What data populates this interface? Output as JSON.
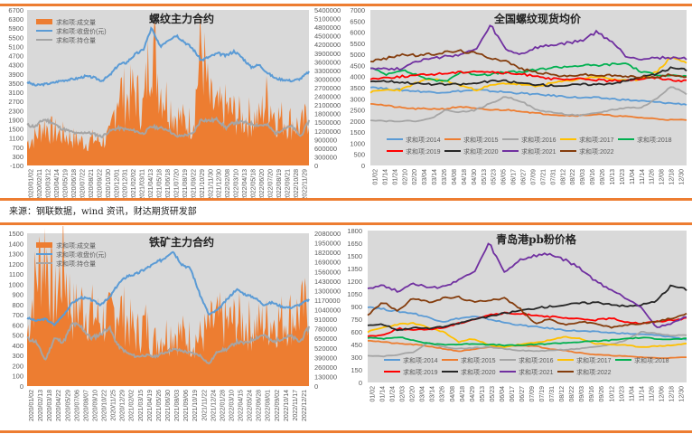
{
  "source_note": "来源：钢联数据，wind 资讯，财达期货研发部",
  "colors": {
    "accent_rule": "#ed7d31",
    "plot_bg": "#d9d9d9",
    "volume": "#ed7d31",
    "close": "#5b9bd5",
    "open_interest": "#a5a5a5"
  },
  "chart_data": [
    {
      "id": "rebar-main",
      "type": "area",
      "title": "螺纹主力合约",
      "legend": [
        "求和项:成交量",
        "求和项:收盘价(元)",
        "求和项:持仓量"
      ],
      "legend_position": "top-left",
      "y_left": {
        "min": -100,
        "max": 6700,
        "ticks": [
          -100,
          300,
          700,
          1100,
          1500,
          1900,
          2300,
          2700,
          3100,
          3500,
          3900,
          4300,
          4700,
          5100,
          5500,
          5900,
          6300,
          6700
        ]
      },
      "y_right": {
        "min": 0,
        "max": 5400000,
        "ticks": [
          0,
          300000,
          600000,
          900000,
          1200000,
          1500000,
          1800000,
          2100000,
          2400000,
          2700000,
          3000000,
          3300000,
          3600000,
          3900000,
          4200000,
          4500000,
          4800000,
          5100000,
          5400000
        ]
      },
      "x_ticks": [
        "2020/01/02",
        "2020/02/11",
        "2020/03/12",
        "2020/04/14",
        "2020/05/19",
        "2020/06/18",
        "2020/07/22",
        "2020/08/21",
        "2020/09/22",
        "2020/10/30",
        "2020/12/01",
        "2020/12/31",
        "2021/02/02",
        "2021/03/11",
        "2021/04/13",
        "2021/05/18",
        "2021/06/18",
        "2021/07/20",
        "2021/08/19",
        "2021/09/22",
        "2021/10/29",
        "2021/11/30",
        "2021/12/30",
        "2022/02/08",
        "2022/03/10",
        "2022/04/13",
        "2022/05/18",
        "2022/06/20",
        "2022/07/20",
        "2022/08/19",
        "2022/09/21",
        "2022/10/28",
        "2022/11/29"
      ],
      "series": [
        {
          "name": "求和项:收盘价(元)",
          "axis": "left",
          "values": [
            3550,
            3400,
            3450,
            3500,
            3600,
            3650,
            3700,
            3800,
            3750,
            3600,
            3850,
            4300,
            4400,
            4750,
            4950,
            5900,
            5100,
            5400,
            5600,
            5300,
            5000,
            4500,
            4650,
            4800,
            4700,
            4900,
            4600,
            4200,
            4300,
            3950,
            3700,
            3650,
            3600,
            3700,
            4000
          ]
        },
        {
          "name": "求和项:持仓量",
          "axis": "right",
          "values": [
            1400000,
            1350000,
            1600000,
            1500000,
            1300000,
            1200000,
            1100000,
            1150000,
            1100000,
            1000000,
            1200000,
            1300000,
            1250000,
            1200000,
            1100000,
            1350000,
            1300000,
            1250000,
            1000000,
            1050000,
            1100000,
            1600000,
            1550000,
            1600000,
            1300000,
            1500000,
            1500000,
            1450000,
            1400000,
            1400000,
            1100000,
            1300000,
            1350000,
            1000000,
            1550000
          ]
        },
        {
          "name": "求和项:成交量",
          "axis": "right",
          "values": [
            800000,
            1000000,
            1400000,
            1200000,
            1100000,
            1000000,
            900000,
            800000,
            900000,
            850000,
            1000000,
            2700000,
            2300000,
            2600000,
            1900000,
            4500000,
            2800000,
            2200000,
            1700000,
            1500000,
            1500000,
            4200000,
            2200000,
            1900000,
            2000000,
            1800000,
            1600000,
            1700000,
            1600000,
            2400000,
            1700000,
            1600000,
            1500000,
            1300000,
            1800000
          ]
        }
      ]
    },
    {
      "id": "rebar-spot",
      "type": "line",
      "title": "全国螺纹现货均价",
      "y": {
        "min": 0,
        "max": 7000,
        "ticks": [
          0,
          500,
          1000,
          1500,
          2000,
          2500,
          3000,
          3500,
          4000,
          4500,
          5000,
          5500,
          6000,
          6500,
          7000
        ]
      },
      "x_ticks": [
        "01/02",
        "01/14",
        "01/24",
        "02/10",
        "02/20",
        "03/04",
        "03/14",
        "03/26",
        "04/08",
        "04/18",
        "04/30",
        "05/13",
        "05/23",
        "06/05",
        "06/17",
        "06/27",
        "07/09",
        "07/21",
        "07/31",
        "08/12",
        "08/22",
        "09/03",
        "09/16",
        "09/26",
        "10/13",
        "10/23",
        "11/04",
        "11/14",
        "11/26",
        "12/08",
        "12/18",
        "12/30"
      ],
      "legend_position": "bottom-left",
      "series": [
        {
          "name": "求和项:2014",
          "color": "#5b9bd5",
          "values": [
            3550,
            3450,
            3400,
            3350,
            3300,
            3300,
            3350,
            3400,
            3350,
            3300,
            3250,
            3200,
            3150,
            3100,
            3050,
            3050,
            3000,
            2950,
            2900,
            2850,
            2800,
            2750
          ]
        },
        {
          "name": "求和项:2015",
          "color": "#ed7d31",
          "values": [
            2800,
            2700,
            2600,
            2550,
            2550,
            2550,
            2650,
            2550,
            2500,
            2500,
            2450,
            2350,
            2300,
            2250,
            2250,
            2300,
            2250,
            2200,
            2150,
            2100,
            2050,
            2050
          ]
        },
        {
          "name": "求和项:2016",
          "color": "#a5a5a5",
          "values": [
            2050,
            2000,
            2000,
            2000,
            2100,
            2500,
            2400,
            2500,
            2800,
            3100,
            2900,
            2500,
            2400,
            2300,
            2250,
            2350,
            2500,
            2600,
            2600,
            3000,
            3600,
            3200
          ]
        },
        {
          "name": "求和项:2017",
          "color": "#ffc000",
          "values": [
            3300,
            3400,
            3400,
            3700,
            3900,
            3800,
            3600,
            3400,
            3600,
            3700,
            3650,
            3550,
            3700,
            3800,
            3900,
            4000,
            3900,
            3800,
            3900,
            4200,
            4900,
            4600
          ]
        },
        {
          "name": "求和项:2018",
          "color": "#00b050",
          "values": [
            4400,
            4100,
            4300,
            4100,
            3850,
            3800,
            4200,
            4100,
            4100,
            4200,
            4200,
            4300,
            4400,
            4450,
            4500,
            4500,
            4550,
            4600,
            4200,
            4100,
            4050,
            4000
          ]
        },
        {
          "name": "求和项:2019",
          "color": "#ff0000",
          "values": [
            3900,
            3950,
            4000,
            4050,
            4100,
            4150,
            4200,
            4250,
            4200,
            4150,
            4100,
            4050,
            3900,
            3850,
            3900,
            3850,
            3800,
            3850,
            3900,
            3950,
            3850,
            3800
          ]
        },
        {
          "name": "求和项:2020",
          "color": "#262626",
          "values": [
            3800,
            3800,
            3750,
            3700,
            3650,
            3650,
            3650,
            3700,
            3800,
            3800,
            3700,
            3650,
            3600,
            3600,
            3650,
            3650,
            3700,
            3800,
            4000,
            4100,
            4400,
            4300
          ]
        },
        {
          "name": "求和项:2021",
          "color": "#7030a0",
          "values": [
            4400,
            4350,
            4350,
            4700,
            4800,
            4900,
            5000,
            5200,
            6300,
            5200,
            5000,
            5300,
            5400,
            5500,
            5600,
            6000,
            5600,
            4900,
            4800,
            4850,
            4850,
            4800
          ]
        },
        {
          "name": "求和项:2022",
          "color": "#843c0c",
          "values": [
            4700,
            4800,
            5000,
            4950,
            5000,
            5100,
            5150,
            5050,
            4850,
            4700,
            4350,
            4200,
            4100,
            4000,
            4100,
            4050,
            4050,
            4000,
            4000,
            3950,
            4100,
            4000
          ]
        }
      ]
    },
    {
      "id": "iron-ore-main",
      "type": "area",
      "title": "铁矿主力合约",
      "legend": [
        "求和项:成交量",
        "求和项:收盘价(元)",
        "求和项:持仓量"
      ],
      "legend_position": "top-left",
      "y_left": {
        "min": 0,
        "max": 1500,
        "ticks": [
          0,
          100,
          200,
          300,
          400,
          500,
          600,
          700,
          800,
          900,
          1000,
          1100,
          1200,
          1300,
          1400,
          1500
        ]
      },
      "y_right": {
        "min": 0,
        "max": 2080000,
        "ticks": [
          0,
          130000,
          260000,
          390000,
          520000,
          650000,
          780000,
          910000,
          1040000,
          1170000,
          1300000,
          1430000,
          1560000,
          1690000,
          1820000,
          1950000,
          2080000
        ]
      },
      "x_ticks": [
        "2020/01/02",
        "2020/02/13",
        "2020/03/18",
        "2020/04/22",
        "2020/05/29",
        "2020/07/06",
        "2020/08/07",
        "2020/09/10",
        "2020/10/22",
        "2020/11/25",
        "2020/12/29",
        "2021/02/02",
        "2021/03/15",
        "2021/04/19",
        "2021/05/26",
        "2021/06/30",
        "2021/08/03",
        "2021/09/06",
        "2021/10/19",
        "2021/11/22",
        "2021/12/24",
        "2022/01/28",
        "2022/03/10",
        "2022/04/15",
        "2022/05/24",
        "2022/06/28",
        "2022/08/01",
        "2022/09/02",
        "2022/10/14",
        "2022/11/17",
        "2022/12/21"
      ],
      "series": [
        {
          "name": "求和项:收盘价(元)",
          "axis": "left",
          "values": [
            670,
            640,
            660,
            600,
            700,
            820,
            870,
            850,
            800,
            860,
            1000,
            1080,
            1100,
            1150,
            1200,
            1250,
            1330,
            1200,
            1150,
            900,
            700,
            750,
            850,
            950,
            900,
            870,
            800,
            820,
            780,
            770,
            800,
            850
          ]
        },
        {
          "name": "求和项:持仓量",
          "axis": "right",
          "values": [
            650000,
            600000,
            350000,
            650000,
            600000,
            850000,
            800000,
            650000,
            700000,
            800000,
            550000,
            450000,
            400000,
            420000,
            400000,
            450000,
            500000,
            480000,
            450000,
            420000,
            300000,
            480000,
            500000,
            600000,
            580000,
            650000,
            700000,
            600000,
            650000,
            680000,
            600000,
            800000
          ]
        },
        {
          "name": "求和项:成交量",
          "axis": "right",
          "values": [
            700000,
            1500000,
            1900000,
            1100000,
            1700000,
            1000000,
            1100000,
            1000000,
            900000,
            900000,
            1100000,
            900000,
            700000,
            850000,
            600000,
            700000,
            750000,
            700000,
            650000,
            650000,
            800000,
            900000,
            850000,
            900000,
            850000,
            800000,
            850000,
            900000,
            900000,
            950000,
            1000000,
            1100000
          ]
        }
      ]
    },
    {
      "id": "qingdao-pb",
      "type": "line",
      "title": "青岛港pb粉价格",
      "y": {
        "min": 0,
        "max": 1800,
        "ticks": [
          0,
          150,
          300,
          450,
          600,
          750,
          900,
          1050,
          1200,
          1350,
          1500,
          1650,
          1800
        ]
      },
      "x_ticks": [
        "01/02",
        "01/14",
        "01/24",
        "02/03",
        "02/20",
        "03/04",
        "03/14",
        "03/26",
        "04/08",
        "04/18",
        "04/29",
        "05/13",
        "05/23",
        "06/04",
        "06/17",
        "06/27",
        "07/09",
        "07/19",
        "07/31",
        "08/12",
        "08/22",
        "09/03",
        "09/16",
        "09/26",
        "10/12",
        "10/23",
        "11/04",
        "11/14",
        "11/26",
        "12/06",
        "12/18",
        "12/30"
      ],
      "legend_position": "bottom-left",
      "series": [
        {
          "name": "求和项:2014",
          "color": "#5b9bd5",
          "values": [
            900,
            870,
            840,
            820,
            770,
            720,
            760,
            780,
            750,
            710,
            680,
            660,
            640,
            620,
            610,
            600,
            590,
            580,
            570,
            560,
            540,
            510
          ]
        },
        {
          "name": "求和项:2015",
          "color": "#ed7d31",
          "values": [
            500,
            480,
            460,
            450,
            430,
            400,
            370,
            390,
            420,
            430,
            440,
            430,
            400,
            380,
            350,
            330,
            320,
            310,
            300,
            290,
            290,
            300
          ]
        },
        {
          "name": "求和项:2016",
          "color": "#a5a5a5",
          "values": [
            320,
            310,
            330,
            360,
            470,
            420,
            400,
            410,
            420,
            400,
            380,
            370,
            380,
            390,
            400,
            420,
            450,
            500,
            600,
            580,
            560,
            560
          ]
        },
        {
          "name": "求和项:2017",
          "color": "#ffc000",
          "values": [
            600,
            650,
            690,
            700,
            650,
            600,
            480,
            520,
            440,
            420,
            450,
            470,
            500,
            540,
            520,
            460,
            450,
            440,
            420,
            430,
            440,
            460
          ]
        },
        {
          "name": "求和项:2018",
          "color": "#00b050",
          "values": [
            530,
            520,
            540,
            500,
            460,
            450,
            450,
            460,
            450,
            440,
            440,
            450,
            460,
            470,
            480,
            490,
            500,
            520,
            530,
            520,
            510,
            520
          ]
        },
        {
          "name": "求和项:2019",
          "color": "#ff0000",
          "values": [
            550,
            560,
            640,
            620,
            630,
            650,
            700,
            750,
            800,
            820,
            810,
            800,
            780,
            760,
            750,
            740,
            760,
            720,
            700,
            720,
            740,
            760
          ]
        },
        {
          "name": "求和项:2020",
          "color": "#262626",
          "values": [
            680,
            690,
            620,
            650,
            640,
            660,
            700,
            750,
            780,
            820,
            850,
            880,
            900,
            920,
            940,
            950,
            930,
            900,
            920,
            960,
            1150,
            1100
          ]
        },
        {
          "name": "求和项:2021",
          "color": "#7030a0",
          "values": [
            1120,
            1150,
            1080,
            1180,
            1120,
            1130,
            1220,
            1300,
            1650,
            1300,
            1450,
            1500,
            1520,
            1450,
            1350,
            1200,
            1100,
            1000,
            900,
            650,
            700,
            780
          ]
        },
        {
          "name": "求和项:2022",
          "color": "#843c0c",
          "values": [
            800,
            950,
            850,
            1000,
            950,
            1000,
            1010,
            950,
            980,
            1000,
            880,
            700,
            750,
            680,
            720,
            700,
            650,
            680,
            700,
            720,
            760,
            820
          ]
        }
      ]
    }
  ]
}
